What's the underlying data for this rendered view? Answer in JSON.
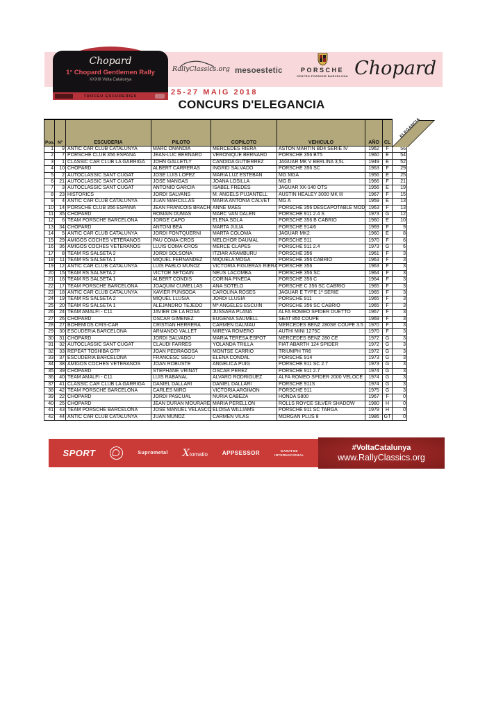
{
  "header": {
    "plate": {
      "brand": "Chopard",
      "title": "1° Chopard Gentlemen Rally",
      "subtitle": "XXXIII Volta Catalunya",
      "strip_label": "TROFEU ESCUDERIES"
    },
    "logos": {
      "rallyclassics": "RallyClassics.org",
      "mesoestetic": "mesoestetic",
      "porsche": "PORSCHE",
      "porsche_dealer": "CENTRO PORSCHE BARCELONA",
      "chopard": "Chopard"
    },
    "date": "25-27 MAIG 2018",
    "title": "CONCURS D'ELEGANCIA"
  },
  "table": {
    "columns": [
      "Pos.",
      "Nº",
      "ESCUDERIA",
      "PILOTO",
      "COPILOTO",
      "VEHICULO",
      "AÑO",
      "CL",
      "ELEGANCIA"
    ],
    "rows": [
      [
        1,
        9,
        "ANTIC CAR CLUB CATALUNYA",
        "MARC ONANDIA",
        "MERCEDES RIERA",
        "ASTON MARTIN BD4 SERIE IV",
        1962,
        "F",
        56
      ],
      [
        2,
        7,
        "PORSCHE CLUB 356 ESPAÑA",
        "JEAN-LUC BERNARD",
        "VÉRONIQUE BERNARD",
        "PORSCHE 356 BT5",
        1960,
        "E",
        54
      ],
      [
        3,
        1,
        "CLASSIC CAR CLUB LA GARRIGA",
        "JOHN GALLETLY",
        "CANDIDA GUTIERREZ",
        "JAGUAR MK V  BERLINA 3,5L",
        1949,
        "E",
        52
      ],
      [
        4,
        10,
        "CHOPARD",
        "ALBERT CARRERAS",
        "INGRID SALVADÓ",
        "PORSCHE 356 SC",
        1963,
        "F",
        29
      ],
      [
        5,
        2,
        "AUTOCLASSIC SANT CUGAT",
        "JOSE LUIS LOPEZ",
        "MARIA LUZ ESTEBAN",
        "MG MGA",
        1956,
        "E",
        25
      ],
      [
        6,
        21,
        "AUTOCLASSIC SANT CUGAT",
        "JOSE MANGAS",
        "JOANA LOSILLA",
        "MG B",
        1966,
        "F",
        21
      ],
      [
        7,
        3,
        "AUTOCLASSIC SANT CUGAT",
        "ANTONIO GARCIA",
        "ISABEL FREDES",
        "JAGUAR XK-140 OTS",
        1956,
        "E",
        19
      ],
      [
        8,
        23,
        "HISTORICS",
        "JORDI SALVANS",
        "M. ANGELS PUJANTELL",
        "AUSTIN HEALEY 3000 MK III",
        1967,
        "F",
        15
      ],
      [
        9,
        4,
        "ANTIC CAR CLUB CATALUNYA",
        "JUAN MARCILLAS",
        "MARIA ANTONIA CALVET",
        "MG A",
        1959,
        "E",
        13
      ],
      [
        10,
        14,
        "PORSCHE CLUB 356 ESPAÑA",
        "JEAN FRANCOIS BRACHOTTE",
        "ANNE MAES",
        "PORSCHE 356 DESCAPOTABLE MODÈLE",
        1963,
        "F",
        13
      ],
      [
        11,
        35,
        "CHOPARD",
        "ROMAIN DUMAS",
        "MARC VAN DALEN",
        "PORSCHE 911 2.4 S",
        1973,
        "G",
        12
      ],
      [
        12,
        6,
        "TEAM PORSCHE BARCELONA",
        "JORGE CAPO",
        "ELENA SOLA",
        "PORSCHE 356 B CABRIO",
        1960,
        "E",
        10
      ],
      [
        13,
        34,
        "CHOPARD",
        "ANTONI BEA",
        "MARTA JULIÀ",
        "PORSCHE 914/6",
        1969,
        "F",
        9
      ],
      [
        14,
        5,
        "ANTIC CAR CLUB CATALUNYA",
        "JORDI FONTQUERNI",
        "MARTA COLOMA",
        "JAGUAR MK2",
        1960,
        "E",
        8
      ],
      [
        15,
        29,
        "AMIGOS COCHES VETERANOS",
        "PAU COMA-CROS",
        "MELCHOR DAUMAL",
        "PORSCHE 911",
        1970,
        "F",
        6
      ],
      [
        16,
        36,
        "AMIGOS COCHES VETERANOS",
        "LLUIS COMA-CROS",
        "MERCÈ CLAPÉS",
        "PORSCHE 911 2.4",
        1973,
        "G",
        6
      ],
      [
        17,
        8,
        "TEAM RS SALSETA 2",
        "JORDI SOLSONA",
        "ITZIAR ARAMBURU",
        "PORSCHE 356",
        1961,
        "F",
        3
      ],
      [
        18,
        11,
        "TEAM RS SALSETA 1",
        "MIQUEL FERNANDEZ",
        "MIQUELA MOGA",
        "PORSCHE 356 CABRIO",
        1963,
        "F",
        3
      ],
      [
        19,
        12,
        "ANTIC CAR CLUB CATALUNYA",
        "LUIS PABLO MUÑOZ",
        "VICTORIA FIGUERAS RIERA",
        "PORSCHE 356",
        1963,
        "F",
        3
      ],
      [
        20,
        15,
        "TEAM RS SALSETA 2",
        "VICTOR SETOAIN",
        "NEUS LACOMBA",
        "PORSCHE 356 SC",
        1964,
        "F",
        3
      ],
      [
        21,
        16,
        "TEAM RS SALSETA 1",
        "ALBERT CONDIS",
        "CORINA PINEDA",
        "PORSCHE 356 C",
        1964,
        "F",
        3
      ],
      [
        22,
        17,
        "TEAM PORSCHE BARCELONA",
        "JOAQUIM CUMELLAS",
        "ANA SOTELO",
        "PORSCHE C 356 SC CABRIO",
        1965,
        "F",
        3
      ],
      [
        23,
        18,
        "ANTIC CAR CLUB CATALUNYA",
        "XAVIER PUNSODA",
        "CAROLINA ROSES",
        "JAGUAR E TYPE 1ª SERIE",
        1965,
        "F",
        3
      ],
      [
        24,
        19,
        "TEAM RS SALSETA 2",
        "MIQUEL LLUSIA",
        "JORDI LLUSIÀ",
        "PORSCHE 911",
        1965,
        "F",
        3
      ],
      [
        25,
        20,
        "TEAM RS SALSETA 1",
        "ALEJANDRO TEJEDO",
        "Mª ANGELES ESCUIN",
        "PORSCHE 356 SC CABRIO",
        1965,
        "F",
        3
      ],
      [
        26,
        24,
        "TEAM AMALFI - C11",
        "JAVIER DE LA ROSA",
        "JUSSARA PLANA",
        "ALFA ROMEO SPIDER DUETTO",
        1967,
        "F",
        3
      ],
      [
        27,
        26,
        "CHOPARD",
        "OSCAR GIMENEZ",
        "EUGENIA SAUMELL",
        "SEAT 850 COUPE",
        1969,
        "F",
        3
      ],
      [
        28,
        27,
        "BOHEMIOS CRIS-CAR",
        "CRISTIAN HERRERA",
        "CARMEN DALMAU",
        "MERCEDES BENZ 280SE COUPÉ 3.5",
        1970,
        "F",
        3
      ],
      [
        29,
        30,
        "ESCUDERIA BARCELONA",
        "ARMANDO VALLET",
        "MIREYA ROMERO",
        "AUTHI MINI 1275C",
        1970,
        "F",
        3
      ],
      [
        30,
        31,
        "CHOPARD",
        "JORDI SALVADO",
        "MARIA TERESA ESPOT",
        "MERCEDES BENZ 280 CE",
        1972,
        "G",
        3
      ],
      [
        31,
        32,
        "AUTOCLASSIC SANT CUGAT",
        "CLAUDI FARRES",
        "YOLANDA TRILLA",
        "FIAT ABARTH 124 SPIDER",
        1972,
        "G",
        3
      ],
      [
        32,
        33,
        "REPEAT TOSHIBA GTP",
        "JOAN PEDRAGOSA",
        "MONTSE CARRIO",
        "TRIUMPH TR6",
        1972,
        "G",
        3
      ],
      [
        33,
        37,
        "ESCUDERIA BARCELONA",
        "FRANCESC SEGÚ",
        "ELENA CONDAL",
        "PORSCHE 914",
        1973,
        "G",
        3
      ],
      [
        34,
        38,
        "AMIGOS COCHES VETERANOS",
        "JOAN ROBUSTÉ",
        "ANGELICA PUIG",
        "PORSCHE 911 SC 2.7",
        1973,
        "G",
        3
      ],
      [
        35,
        39,
        "CHOPARD",
        "STEPHANE VRINAT",
        "OSCAR PEREZ",
        "PORSCHE 911 2.7",
        1974,
        "G",
        3
      ],
      [
        36,
        40,
        "TEAM AMALFI - C11",
        "LUIS RABANAL",
        "ÁLVARO RODRÍGUEZ",
        "ALFA ROMEO SPIDER 2000 VELOCE",
        1974,
        "G",
        3
      ],
      [
        37,
        41,
        "CLASSIC CAR CLUB LA GARRIGA",
        "DANIEL DALLARI",
        "DANIEL DALLARI",
        "PORSCHE 911S",
        1974,
        "G",
        3
      ],
      [
        38,
        42,
        "TEAM PORSCHE BARCELONA",
        "CARLES MIRÓ",
        "VICTÒRIA ARGIMÓN",
        "PORSCHE 911",
        1975,
        "G",
        3
      ],
      [
        39,
        22,
        "CHOPARD",
        "JORDI PASCUAL",
        "NÚRIA CABEZA",
        "HONDA S800",
        1967,
        "F",
        0
      ],
      [
        40,
        25,
        "CHOPARD",
        "JEAN DURAN MOURAREAU",
        "MARIA PERELLON",
        "ROLLS ROYCE SILVER SHADOW",
        1980,
        "H",
        0
      ],
      [
        41,
        43,
        "TEAM PORSCHE BARCELONA",
        "JOSE MANUEL VELASCO",
        "ELOISA WILLIAMS",
        "PORSCHE 911 SC TARGA",
        1979,
        "H",
        0
      ],
      [
        42,
        44,
        "ANTIC CAR CLUB CATALUNYA",
        "JUAN MUÑOZ",
        "CARMEN VILAS",
        "MORGAN PLUS 8",
        1986,
        "GT",
        0
      ]
    ]
  },
  "footer": {
    "sponsors": {
      "sport": "SPORT",
      "suprometal": "Suprometal",
      "x_logo_x": "X",
      "x_logo_rest": "tomatio",
      "appsessor": "APPSESSOR",
      "garatge_line1": "GARATGE",
      "garatge_line2": "INTERNACIONAL"
    },
    "hashtag": "#VoltaCatalunya",
    "url": "www.RallyClassics.org"
  },
  "colors": {
    "pink_band": "#f8d8da",
    "accent_red": "#c8373a",
    "table_header_tan": "#b3a87c",
    "footer_red": "#ca3b38",
    "footer_dark_red": "#7e1d1c"
  }
}
